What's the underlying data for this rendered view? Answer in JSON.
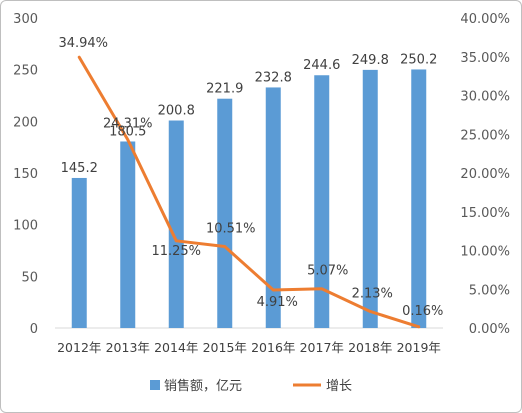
{
  "chart_data": {
    "type": "bar+line",
    "categories": [
      "2012年",
      "2013年",
      "2014年",
      "2015年",
      "2016年",
      "2017年",
      "2018年",
      "2019年"
    ],
    "series": [
      {
        "name": "销售额，亿元",
        "type": "bar",
        "axis": "left",
        "values": [
          145.2,
          180.5,
          200.8,
          221.9,
          232.8,
          244.6,
          249.8,
          250.2
        ],
        "labels": [
          "145.2",
          "180.5",
          "200.8",
          "221.9",
          "232.8",
          "244.6",
          "249.8",
          "250.2"
        ],
        "color": "#5B9BD5"
      },
      {
        "name": "增长",
        "type": "line",
        "axis": "right",
        "values": [
          34.94,
          24.31,
          11.25,
          10.51,
          4.91,
          5.07,
          2.13,
          0.16
        ],
        "labels": [
          "34.94%",
          "24.31%",
          "11.25%",
          "10.51%",
          "4.91%",
          "5.07%",
          "2.13%",
          "0.16%"
        ],
        "color": "#ED7D31"
      }
    ],
    "y_left": {
      "min": 0,
      "max": 300,
      "ticks": [
        "0",
        "50",
        "100",
        "150",
        "200",
        "250",
        "300"
      ]
    },
    "y_right": {
      "min": 0,
      "max": 40,
      "ticks": [
        "0.00%",
        "5.00%",
        "10.00%",
        "15.00%",
        "20.00%",
        "25.00%",
        "30.00%",
        "35.00%",
        "40.00%"
      ]
    },
    "grid": false,
    "legend": "bottom"
  }
}
